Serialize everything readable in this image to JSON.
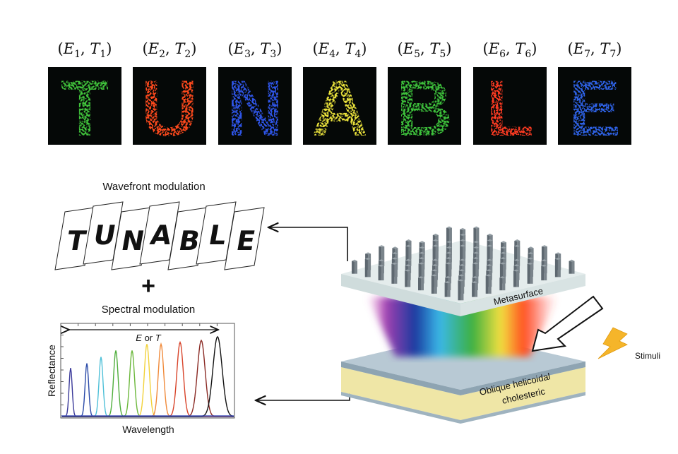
{
  "top_labels": [
    {
      "e": "E",
      "t": "T",
      "sub": "1"
    },
    {
      "e": "E",
      "t": "T",
      "sub": "2"
    },
    {
      "e": "E",
      "t": "T",
      "sub": "3"
    },
    {
      "e": "E",
      "t": "T",
      "sub": "4"
    },
    {
      "e": "E",
      "t": "T",
      "sub": "5"
    },
    {
      "e": "E",
      "t": "T",
      "sub": "6"
    },
    {
      "e": "E",
      "t": "T",
      "sub": "7"
    }
  ],
  "tiles": [
    {
      "letter": "T",
      "color": "#3fc23a"
    },
    {
      "letter": "U",
      "color": "#ff4a1e"
    },
    {
      "letter": "N",
      "color": "#2f55e8"
    },
    {
      "letter": "A",
      "color": "#e8e03a"
    },
    {
      "letter": "B",
      "color": "#3cc03a"
    },
    {
      "letter": "L",
      "color": "#ff3a22"
    },
    {
      "letter": "E",
      "color": "#2e62e6"
    }
  ],
  "wavefront_title": "Wavefront modulation",
  "cards": [
    "T",
    "U",
    "N",
    "A",
    "B",
    "L",
    "E"
  ],
  "plus": "+",
  "spectral_title": "Spectral modulation",
  "chart_data": {
    "type": "line",
    "xlabel": "Wavelength",
    "ylabel": "Reflectance",
    "annotation_e": "E",
    "annotation_or": " or ",
    "annotation_t": "T",
    "series_colors": [
      "#3b3a9a",
      "#2a4aa8",
      "#4fc0d8",
      "#4fae3c",
      "#6cb83c",
      "#f2d23a",
      "#f08a3a",
      "#d8442a",
      "#8a2a24",
      "#111111"
    ],
    "peak_heights": [
      0.53,
      0.58,
      0.65,
      0.72,
      0.72,
      0.79,
      0.79,
      0.81,
      0.83,
      0.87
    ]
  },
  "device": {
    "metasurface_label": "Metasurface",
    "cholesteric_label_1": "Oblique helicoidal",
    "cholesteric_label_2": "cholesteric",
    "stimuli_label": "Stimuli"
  }
}
